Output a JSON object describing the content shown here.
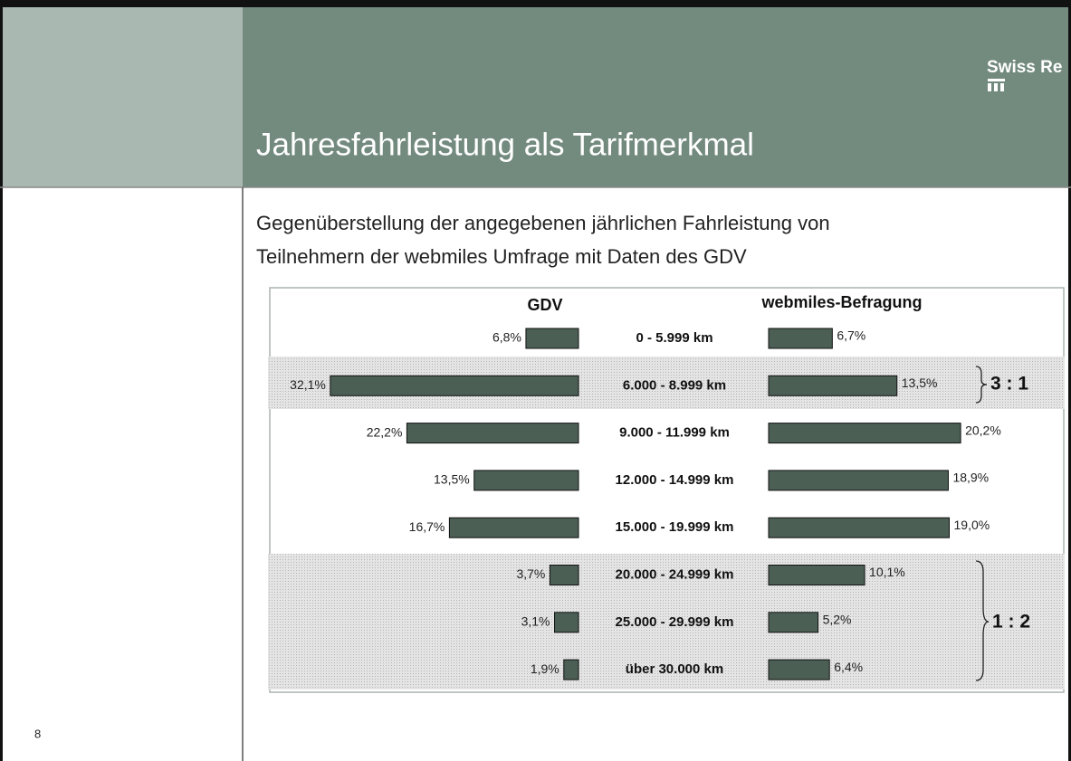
{
  "header": {
    "brand": "Swiss Re",
    "title": "Jahresfahrleistung als Tarifmerkmal"
  },
  "subtitle": [
    "Gegenüberstellung der angegebenen jährlichen Fahrleistung von",
    "Teilnehmern der webmiles Umfrage mit Daten des GDV"
  ],
  "page_number": "8",
  "chart_data": {
    "type": "butterfly",
    "categories": [
      "0 - 5.999 km",
      "6.000 - 8.999 km",
      "9.000 - 11.999 km",
      "12.000 - 14.999 km",
      "15.000 - 19.999 km",
      "20.000 - 24.999 km",
      "25.000 - 29.999 km",
      "über 30.000 km"
    ],
    "series": [
      {
        "name": "GDV",
        "color": "#4b5f54",
        "values": [
          6.8,
          32.1,
          22.2,
          13.5,
          16.7,
          3.7,
          3.1,
          1.9
        ],
        "value_labels": [
          "6,8%",
          "32,1%",
          "22,2%",
          "13,5%",
          "16,7%",
          "3,7%",
          "3,1%",
          "1,9%"
        ]
      },
      {
        "name": "webmiles-Befragung",
        "color": "#4b5f54",
        "values": [
          6.7,
          13.5,
          20.2,
          18.9,
          19.0,
          10.1,
          5.2,
          6.4
        ],
        "value_labels": [
          "6,7%",
          "13,5%",
          "20,2%",
          "18,9%",
          "19,0%",
          "10,1%",
          "5,2%",
          "6,4%"
        ]
      }
    ],
    "annotations": [
      "3 : 1",
      "1 : 2"
    ]
  }
}
